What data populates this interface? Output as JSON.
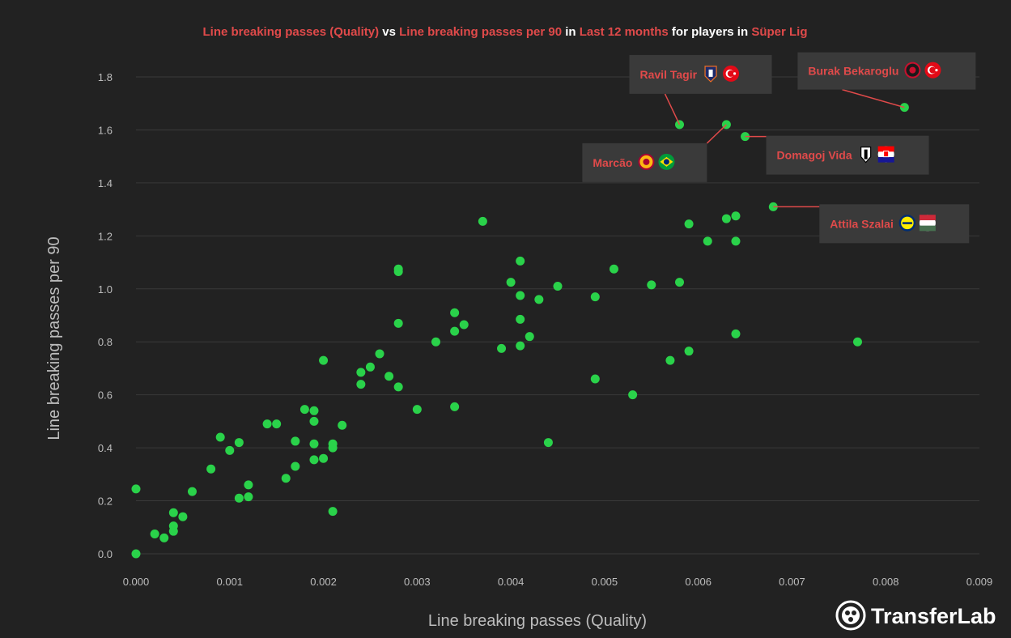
{
  "title": {
    "parts": [
      {
        "text": "Line breaking passes (Quality)",
        "highlight": true
      },
      {
        "text": " vs ",
        "highlight": false
      },
      {
        "text": "Line breaking passes per 90",
        "highlight": true
      },
      {
        "text": " in ",
        "highlight": false
      },
      {
        "text": "Last 12 months",
        "highlight": true
      },
      {
        "text": " for players in ",
        "highlight": false
      },
      {
        "text": "Süper Lig",
        "highlight": true
      }
    ]
  },
  "brand": {
    "name": "TransferLab",
    "icon": "transferlab-logo-icon"
  },
  "colors": {
    "background": "#222222",
    "point": "#2ad24a",
    "highlight": "#e04a4a",
    "grid": "#3a3a3a",
    "annotation_box": "#3a3a3a"
  },
  "chart_data": {
    "type": "scatter",
    "xlabel": "Line breaking passes (Quality)",
    "ylabel": "Line breaking passes per 90",
    "xlim": [
      0,
      0.009
    ],
    "ylim": [
      0,
      1.9
    ],
    "xticks": [
      "0.000",
      "0.001",
      "0.002",
      "0.003",
      "0.004",
      "0.005",
      "0.006",
      "0.007",
      "0.008",
      "0.009"
    ],
    "yticks": [
      "0.0",
      "0.2",
      "0.4",
      "0.6",
      "0.8",
      "1.0",
      "1.2",
      "1.4",
      "1.6",
      "1.8"
    ],
    "grid": "horizontal",
    "points": [
      [
        0.0,
        0.0
      ],
      [
        0.0,
        0.245
      ],
      [
        0.0002,
        0.075
      ],
      [
        0.0003,
        0.06
      ],
      [
        0.0004,
        0.085
      ],
      [
        0.0004,
        0.105
      ],
      [
        0.0004,
        0.155
      ],
      [
        0.0005,
        0.14
      ],
      [
        0.0006,
        0.235
      ],
      [
        0.0008,
        0.32
      ],
      [
        0.0009,
        0.44
      ],
      [
        0.001,
        0.39
      ],
      [
        0.0011,
        0.21
      ],
      [
        0.0011,
        0.42
      ],
      [
        0.0012,
        0.215
      ],
      [
        0.0012,
        0.26
      ],
      [
        0.0014,
        0.49
      ],
      [
        0.0015,
        0.49
      ],
      [
        0.0016,
        0.285
      ],
      [
        0.0017,
        0.33
      ],
      [
        0.0017,
        0.425
      ],
      [
        0.0018,
        0.545
      ],
      [
        0.0019,
        0.355
      ],
      [
        0.0019,
        0.415
      ],
      [
        0.0019,
        0.5
      ],
      [
        0.0019,
        0.54
      ],
      [
        0.002,
        0.36
      ],
      [
        0.002,
        0.73
      ],
      [
        0.0021,
        0.16
      ],
      [
        0.0021,
        0.4
      ],
      [
        0.0021,
        0.415
      ],
      [
        0.0022,
        0.485
      ],
      [
        0.0024,
        0.64
      ],
      [
        0.0024,
        0.685
      ],
      [
        0.0025,
        0.705
      ],
      [
        0.0026,
        0.755
      ],
      [
        0.0027,
        0.67
      ],
      [
        0.0028,
        0.63
      ],
      [
        0.0028,
        0.87
      ],
      [
        0.0028,
        1.065
      ],
      [
        0.0028,
        1.075
      ],
      [
        0.003,
        0.545
      ],
      [
        0.0032,
        0.8
      ],
      [
        0.0034,
        0.555
      ],
      [
        0.0034,
        0.84
      ],
      [
        0.0034,
        0.91
      ],
      [
        0.0035,
        0.865
      ],
      [
        0.0037,
        1.255
      ],
      [
        0.0039,
        0.775
      ],
      [
        0.004,
        1.025
      ],
      [
        0.0041,
        0.785
      ],
      [
        0.0041,
        0.885
      ],
      [
        0.0041,
        0.975
      ],
      [
        0.0041,
        1.105
      ],
      [
        0.0042,
        0.82
      ],
      [
        0.0043,
        0.96
      ],
      [
        0.0044,
        0.42
      ],
      [
        0.0045,
        1.01
      ],
      [
        0.0049,
        0.66
      ],
      [
        0.0049,
        0.97
      ],
      [
        0.0051,
        1.075
      ],
      [
        0.0053,
        0.6
      ],
      [
        0.0055,
        1.015
      ],
      [
        0.0057,
        0.73
      ],
      [
        0.0058,
        1.025
      ],
      [
        0.0058,
        1.62
      ],
      [
        0.0059,
        0.765
      ],
      [
        0.0059,
        1.245
      ],
      [
        0.0061,
        1.18
      ],
      [
        0.0063,
        1.265
      ],
      [
        0.0063,
        1.62
      ],
      [
        0.0064,
        0.83
      ],
      [
        0.0064,
        1.18
      ],
      [
        0.0064,
        1.275
      ],
      [
        0.0065,
        1.575
      ],
      [
        0.0068,
        1.31
      ],
      [
        0.0077,
        0.8
      ],
      [
        0.0082,
        1.685
      ]
    ],
    "annotations": [
      {
        "label": "Burak Bekaroglu",
        "x": 0.0082,
        "y": 1.685,
        "club_icon": "karagumruk-crest-icon",
        "flag_icon": "turkey-flag-icon"
      },
      {
        "label": "Ravil Tagir",
        "x": 0.0058,
        "y": 1.62,
        "club_icon": "basaksehir-crest-icon",
        "flag_icon": "turkey-flag-icon"
      },
      {
        "label": "Marcão",
        "x": 0.0063,
        "y": 1.62,
        "club_icon": "galatasaray-crest-icon",
        "flag_icon": "brazil-flag-icon"
      },
      {
        "label": "Domagoj Vida",
        "x": 0.0065,
        "y": 1.575,
        "club_icon": "besiktas-crest-icon",
        "flag_icon": "croatia-flag-icon"
      },
      {
        "label": "Attila Szalai",
        "x": 0.0068,
        "y": 1.31,
        "club_icon": "fenerbahce-crest-icon",
        "flag_icon": "hungary-flag-icon"
      }
    ]
  }
}
